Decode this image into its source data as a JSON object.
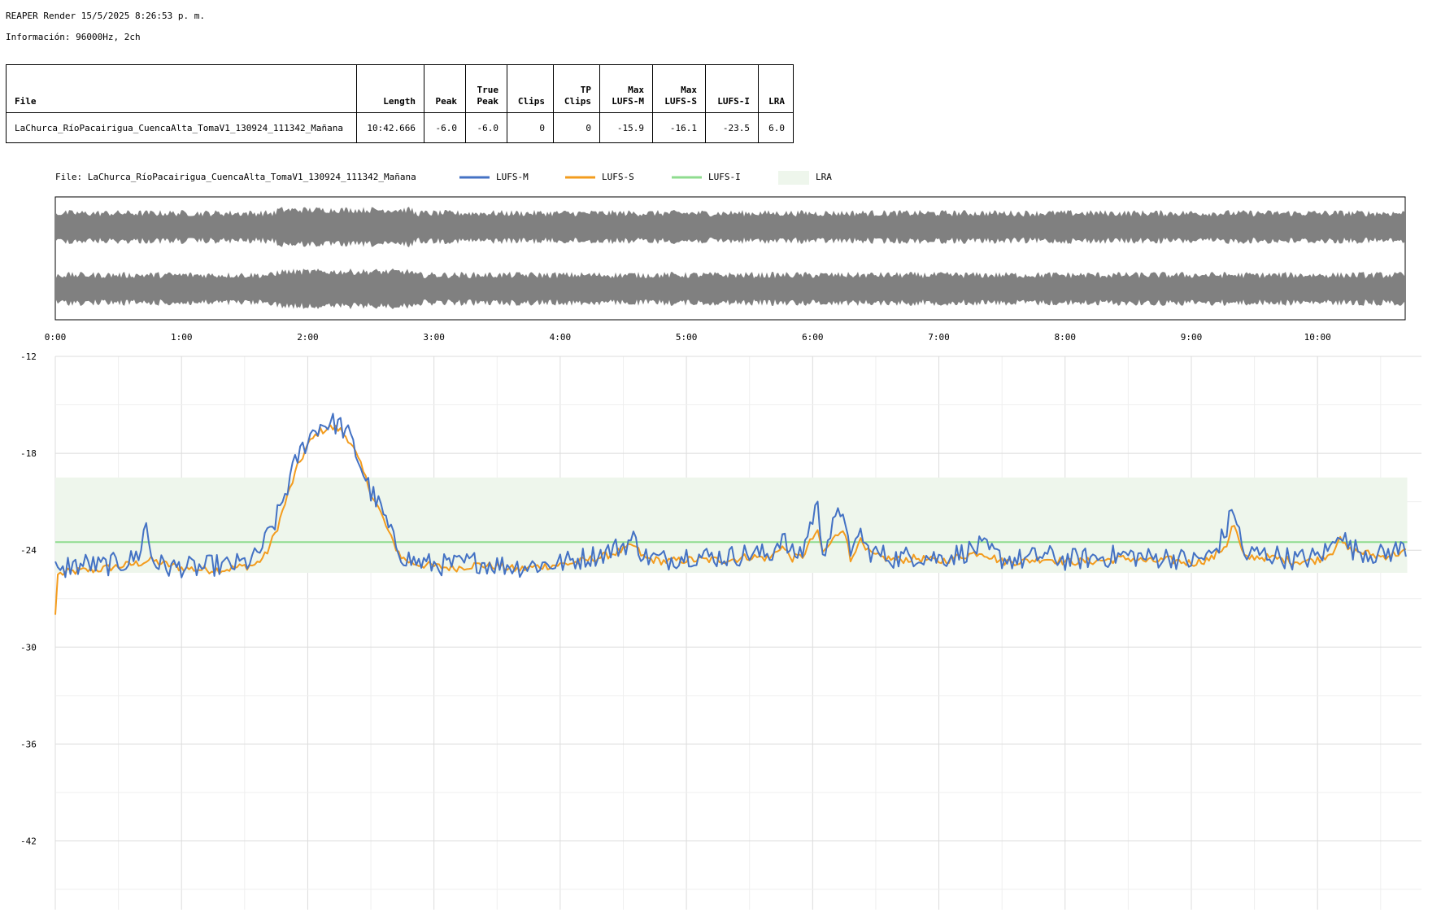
{
  "header": {
    "title": "REAPER Render 15/5/2025 8:26:53 p. m.",
    "info": "Información: 96000Hz, 2ch"
  },
  "table": {
    "columns": [
      {
        "line1": "",
        "line2": "File"
      },
      {
        "line1": "",
        "line2": "Length"
      },
      {
        "line1": "",
        "line2": "Peak"
      },
      {
        "line1": "True",
        "line2": "Peak"
      },
      {
        "line1": "",
        "line2": "Clips"
      },
      {
        "line1": "TP",
        "line2": "Clips"
      },
      {
        "line1": "Max",
        "line2": "LUFS-M"
      },
      {
        "line1": "Max",
        "line2": "LUFS-S"
      },
      {
        "line1": "",
        "line2": "LUFS-I"
      },
      {
        "line1": "",
        "line2": "LRA"
      }
    ],
    "row": [
      "LaChurca_RíoPacairigua_CuencaAlta_TomaV1_130924_111342_Mañana",
      "10:42.666",
      "-6.0",
      "-6.0",
      "0",
      "0",
      "-15.9",
      "-16.1",
      "-23.5",
      "6.0"
    ]
  },
  "legend": {
    "file_label": "File: LaChurca_RíoPacairigua_CuencaAlta_TomaV1_130924_111342_Mañana",
    "items": [
      {
        "label": "LUFS-M",
        "color": "#4472c4",
        "kind": "line"
      },
      {
        "label": "LUFS-S",
        "color": "#f39c1e",
        "kind": "line"
      },
      {
        "label": "LUFS-I",
        "color": "#8fdc8f",
        "kind": "line"
      },
      {
        "label": "LRA",
        "color": "#eef6ec",
        "kind": "box"
      }
    ]
  },
  "chart_data": {
    "type": "line",
    "x_unit": "seconds",
    "duration": 642.666,
    "x_ticks": [
      {
        "t": 0,
        "label": "0:00"
      },
      {
        "t": 60,
        "label": "1:00"
      },
      {
        "t": 120,
        "label": "2:00"
      },
      {
        "t": 180,
        "label": "3:00"
      },
      {
        "t": 240,
        "label": "4:00"
      },
      {
        "t": 300,
        "label": "5:00"
      },
      {
        "t": 360,
        "label": "6:00"
      },
      {
        "t": 420,
        "label": "7:00"
      },
      {
        "t": 480,
        "label": "8:00"
      },
      {
        "t": 540,
        "label": "9:00"
      },
      {
        "t": 600,
        "label": "10:00"
      }
    ],
    "y_ticks": [
      -12,
      -18,
      -24,
      -30,
      -36,
      -42
    ],
    "ylim": [
      -46.3,
      -12
    ],
    "lufs_i": -23.5,
    "lra_range": [
      -25.4,
      -19.5
    ],
    "series": [
      {
        "name": "LUFS-M",
        "color": "#4472c4",
        "points": [
          [
            0,
            -24.7
          ],
          [
            3,
            -25.6
          ],
          [
            6,
            -24.9
          ],
          [
            10,
            -25.0
          ],
          [
            15,
            -24.8
          ],
          [
            20,
            -25.0
          ],
          [
            25,
            -24.9
          ],
          [
            30,
            -24.8
          ],
          [
            35,
            -24.7
          ],
          [
            40,
            -24.2
          ],
          [
            43,
            -22.3
          ],
          [
            46,
            -24.6
          ],
          [
            50,
            -24.9
          ],
          [
            55,
            -25.1
          ],
          [
            60,
            -25.0
          ],
          [
            65,
            -25.1
          ],
          [
            70,
            -25.1
          ],
          [
            75,
            -24.9
          ],
          [
            80,
            -25.0
          ],
          [
            85,
            -24.9
          ],
          [
            90,
            -24.8
          ],
          [
            95,
            -24.5
          ],
          [
            100,
            -23.4
          ],
          [
            105,
            -22.1
          ],
          [
            110,
            -20.2
          ],
          [
            115,
            -18.3
          ],
          [
            120,
            -17.1
          ],
          [
            125,
            -16.3
          ],
          [
            130,
            -16.1
          ],
          [
            135,
            -16.2
          ],
          [
            140,
            -17.0
          ],
          [
            145,
            -18.7
          ],
          [
            150,
            -20.4
          ],
          [
            155,
            -21.5
          ],
          [
            160,
            -23.2
          ],
          [
            165,
            -24.3
          ],
          [
            170,
            -24.7
          ],
          [
            180,
            -24.9
          ],
          [
            190,
            -24.9
          ],
          [
            200,
            -24.7
          ],
          [
            210,
            -24.9
          ],
          [
            220,
            -25.0
          ],
          [
            230,
            -24.9
          ],
          [
            240,
            -24.8
          ],
          [
            250,
            -24.5
          ],
          [
            260,
            -24.2
          ],
          [
            270,
            -23.7
          ],
          [
            275,
            -23.3
          ],
          [
            280,
            -24.4
          ],
          [
            290,
            -24.6
          ],
          [
            300,
            -24.3
          ],
          [
            310,
            -24.4
          ],
          [
            320,
            -24.4
          ],
          [
            330,
            -24.2
          ],
          [
            340,
            -24.3
          ],
          [
            345,
            -23.1
          ],
          [
            350,
            -24.3
          ],
          [
            355,
            -24.1
          ],
          [
            362,
            -21.1
          ],
          [
            365,
            -24.0
          ],
          [
            370,
            -22.5
          ],
          [
            375,
            -21.2
          ],
          [
            378,
            -25.0
          ],
          [
            382,
            -22.5
          ],
          [
            385,
            -23.9
          ],
          [
            390,
            -24.2
          ],
          [
            400,
            -24.5
          ],
          [
            410,
            -24.3
          ],
          [
            420,
            -24.5
          ],
          [
            430,
            -24.2
          ],
          [
            440,
            -23.8
          ],
          [
            450,
            -24.5
          ],
          [
            460,
            -24.6
          ],
          [
            470,
            -24.3
          ],
          [
            480,
            -24.6
          ],
          [
            490,
            -24.5
          ],
          [
            500,
            -24.4
          ],
          [
            510,
            -24.3
          ],
          [
            520,
            -24.5
          ],
          [
            530,
            -24.4
          ],
          [
            540,
            -24.7
          ],
          [
            550,
            -24.3
          ],
          [
            557,
            -22.7
          ],
          [
            560,
            -21.2
          ],
          [
            565,
            -24.4
          ],
          [
            570,
            -24.2
          ],
          [
            580,
            -24.3
          ],
          [
            590,
            -24.6
          ],
          [
            600,
            -24.4
          ],
          [
            607,
            -23.8
          ],
          [
            610,
            -22.5
          ],
          [
            615,
            -23.9
          ],
          [
            620,
            -24.0
          ],
          [
            630,
            -24.3
          ],
          [
            642,
            -23.8
          ]
        ]
      },
      {
        "name": "LUFS-S",
        "color": "#f39c1e",
        "points": [
          [
            0,
            -28.0
          ],
          [
            1,
            -25.5
          ],
          [
            5,
            -25.4
          ],
          [
            10,
            -25.3
          ],
          [
            20,
            -25.2
          ],
          [
            30,
            -25.0
          ],
          [
            40,
            -24.8
          ],
          [
            45,
            -24.6
          ],
          [
            50,
            -24.8
          ],
          [
            60,
            -25.1
          ],
          [
            70,
            -25.2
          ],
          [
            80,
            -25.2
          ],
          [
            90,
            -25.0
          ],
          [
            95,
            -24.9
          ],
          [
            100,
            -24.3
          ],
          [
            105,
            -22.8
          ],
          [
            110,
            -20.8
          ],
          [
            115,
            -18.9
          ],
          [
            120,
            -17.5
          ],
          [
            125,
            -16.7
          ],
          [
            130,
            -16.4
          ],
          [
            135,
            -16.5
          ],
          [
            140,
            -17.2
          ],
          [
            145,
            -18.7
          ],
          [
            150,
            -20.4
          ],
          [
            155,
            -21.8
          ],
          [
            160,
            -23.4
          ],
          [
            165,
            -24.5
          ],
          [
            170,
            -24.8
          ],
          [
            180,
            -25.0
          ],
          [
            190,
            -25.1
          ],
          [
            200,
            -24.9
          ],
          [
            210,
            -25.0
          ],
          [
            220,
            -25.2
          ],
          [
            230,
            -25.0
          ],
          [
            240,
            -24.9
          ],
          [
            250,
            -24.7
          ],
          [
            260,
            -24.4
          ],
          [
            270,
            -24.0
          ],
          [
            275,
            -23.7
          ],
          [
            280,
            -24.5
          ],
          [
            290,
            -24.7
          ],
          [
            300,
            -24.6
          ],
          [
            310,
            -24.6
          ],
          [
            320,
            -24.6
          ],
          [
            330,
            -24.4
          ],
          [
            340,
            -24.5
          ],
          [
            345,
            -23.7
          ],
          [
            350,
            -24.5
          ],
          [
            355,
            -24.4
          ],
          [
            362,
            -22.8
          ],
          [
            365,
            -24.2
          ],
          [
            370,
            -23.3
          ],
          [
            375,
            -22.5
          ],
          [
            378,
            -24.7
          ],
          [
            382,
            -23.3
          ],
          [
            385,
            -24.0
          ],
          [
            390,
            -24.4
          ],
          [
            400,
            -24.6
          ],
          [
            410,
            -24.5
          ],
          [
            420,
            -24.7
          ],
          [
            430,
            -24.4
          ],
          [
            440,
            -24.1
          ],
          [
            450,
            -24.7
          ],
          [
            460,
            -24.7
          ],
          [
            470,
            -24.5
          ],
          [
            480,
            -24.7
          ],
          [
            490,
            -24.7
          ],
          [
            500,
            -24.6
          ],
          [
            510,
            -24.5
          ],
          [
            520,
            -24.7
          ],
          [
            530,
            -24.6
          ],
          [
            540,
            -24.8
          ],
          [
            550,
            -24.5
          ],
          [
            557,
            -23.6
          ],
          [
            560,
            -22.3
          ],
          [
            565,
            -24.5
          ],
          [
            570,
            -24.4
          ],
          [
            580,
            -24.5
          ],
          [
            590,
            -24.7
          ],
          [
            600,
            -24.6
          ],
          [
            607,
            -24.1
          ],
          [
            610,
            -23.3
          ],
          [
            615,
            -24.0
          ],
          [
            620,
            -24.1
          ],
          [
            630,
            -24.4
          ],
          [
            642,
            -24.1
          ]
        ]
      },
      {
        "name": "LUFS-I",
        "color": "#8fdc8f",
        "constant": -23.5
      }
    ]
  }
}
